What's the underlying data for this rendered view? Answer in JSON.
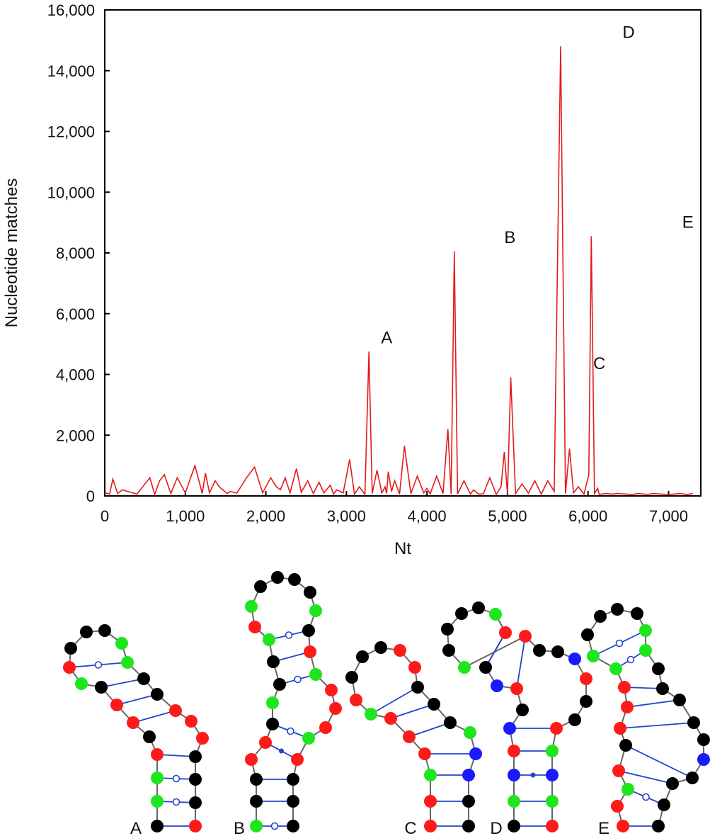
{
  "chart_data": {
    "type": "line",
    "xlabel": "Nt",
    "ylabel": "Nucleotide matches",
    "xlim": [
      0,
      7400
    ],
    "ylim": [
      0,
      16000
    ],
    "x_ticks": [
      0,
      1000,
      2000,
      3000,
      4000,
      5000,
      6000,
      7000
    ],
    "x_tick_labels": [
      "0",
      "1,000",
      "2,000",
      "3,000",
      "4,000",
      "5,000",
      "6,000",
      "7,000"
    ],
    "y_ticks": [
      0,
      2000,
      4000,
      6000,
      8000,
      10000,
      12000,
      14000,
      16000
    ],
    "y_tick_labels": [
      "0",
      "2,000",
      "4,000",
      "6,000",
      "8,000",
      "10,000",
      "12,000",
      "14,000",
      "16,000"
    ],
    "grid": false,
    "legend": "none",
    "colors": {
      "series": "#e31a1c",
      "axis": "#000000"
    },
    "series": [
      {
        "color": "#e31a1c",
        "x": [
          0,
          60,
          100,
          160,
          220,
          320,
          400,
          560,
          620,
          680,
          740,
          820,
          900,
          1000,
          1120,
          1210,
          1250,
          1300,
          1370,
          1420,
          1520,
          1560,
          1640,
          1760,
          1860,
          1960,
          2060,
          2130,
          2180,
          2240,
          2300,
          2380,
          2440,
          2520,
          2590,
          2660,
          2720,
          2800,
          2840,
          2880,
          2960,
          3040,
          3100,
          3160,
          3230,
          3280,
          3320,
          3380,
          3440,
          3480,
          3500,
          3520,
          3560,
          3600,
          3660,
          3720,
          3800,
          3880,
          3960,
          4000,
          4040,
          4120,
          4200,
          4260,
          4300,
          4340,
          4380,
          4460,
          4540,
          4580,
          4640,
          4700,
          4780,
          4860,
          4920,
          4960,
          5000,
          5040,
          5100,
          5180,
          5260,
          5340,
          5420,
          5500,
          5580,
          5660,
          5720,
          5770,
          5820,
          5880,
          5950,
          6010,
          6040,
          6080,
          6120,
          6140,
          6170,
          6220,
          6300,
          6360,
          6420,
          6480,
          6540,
          6580,
          6620,
          6660,
          6700,
          6730,
          6770,
          6800,
          6860,
          6920,
          6980,
          7060,
          7140,
          7180,
          7200,
          7230,
          7260,
          7300
        ],
        "y": [
          100,
          60,
          550,
          80,
          200,
          120,
          60,
          600,
          50,
          500,
          700,
          80,
          600,
          100,
          1000,
          80,
          750,
          100,
          500,
          300,
          80,
          150,
          90,
          600,
          950,
          100,
          600,
          300,
          200,
          600,
          100,
          900,
          120,
          500,
          80,
          450,
          100,
          350,
          60,
          200,
          100,
          1200,
          60,
          300,
          50,
          4750,
          80,
          850,
          100,
          300,
          80,
          800,
          150,
          500,
          60,
          1650,
          80,
          650,
          100,
          250,
          70,
          650,
          80,
          2200,
          60,
          8050,
          70,
          500,
          60,
          200,
          60,
          70,
          600,
          50,
          300,
          1450,
          60,
          3900,
          70,
          400,
          90,
          500,
          60,
          500,
          150,
          14800,
          80,
          1550,
          100,
          300,
          60,
          700,
          8550,
          80,
          250,
          50,
          60,
          80,
          60,
          80,
          70,
          60,
          50,
          60,
          80,
          70,
          60,
          50,
          60,
          80,
          70,
          60,
          50,
          60,
          80,
          70,
          60,
          50,
          60,
          80
        ]
      }
    ],
    "annotations": [
      {
        "text": "A",
        "x": 3500,
        "y": 4750
      },
      {
        "text": "B",
        "x": 5030,
        "y": 8050
      },
      {
        "text": "C",
        "x": 6140,
        "y": 3900
      },
      {
        "text": "D",
        "x": 6680,
        "y": 14800
      },
      {
        "text": "E",
        "x": 7240,
        "y": 8550
      }
    ]
  },
  "structures": [
    {
      "id": "A",
      "label": "A"
    },
    {
      "id": "B",
      "label": "B"
    },
    {
      "id": "C",
      "label": "C"
    },
    {
      "id": "D",
      "label": "D"
    },
    {
      "id": "E",
      "label": "E"
    }
  ],
  "nucleotide_colors": {
    "black": "#000000",
    "red": "#ff1a1a",
    "green": "#1ee61e",
    "blue": "#1a1aff",
    "backbone": "#666666",
    "pair": "#2244cc"
  }
}
